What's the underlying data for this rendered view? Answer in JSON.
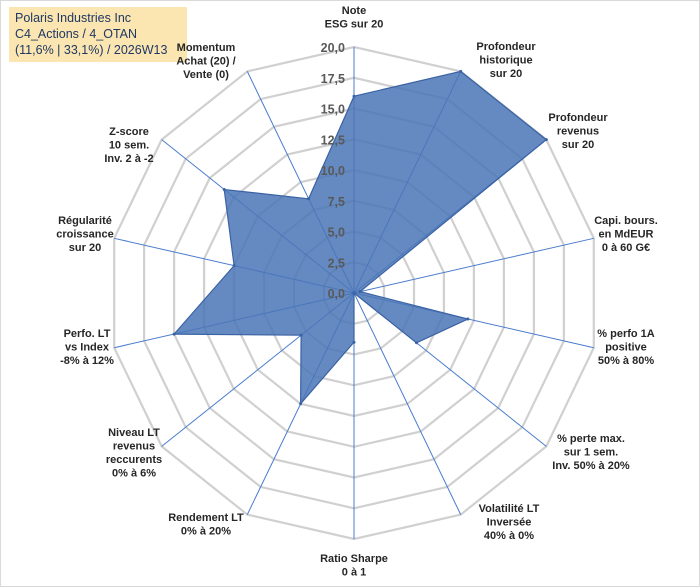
{
  "title": {
    "line1": "Polaris Industries Inc",
    "line2": "C4_Actions / 4_OTAN",
    "line3": "(11,6% | 33,1%) / 2026W13"
  },
  "chart_data": {
    "type": "radar",
    "title": "Polaris Industries Inc",
    "subtitle": "C4_Actions / 4_OTAN (11,6% | 33,1%) / 2026W13",
    "range": [
      0,
      20
    ],
    "ticks": [
      "0,0",
      "2,5",
      "5,0",
      "7,5",
      "10,0",
      "12,5",
      "15,0",
      "17,5",
      "20,0"
    ],
    "tick_values": [
      0,
      2.5,
      5,
      7.5,
      10,
      12.5,
      15,
      17.5,
      20
    ],
    "categories": [
      [
        "Note",
        "ESG sur 20"
      ],
      [
        "Profondeur",
        "historique",
        "sur 20"
      ],
      [
        "Profondeur",
        "revenus",
        "sur 20"
      ],
      [
        "Capi. bours.",
        "en MdEUR",
        "0 à 60 G€"
      ],
      [
        "% perfo 1A",
        "positive",
        "50% à 80%"
      ],
      [
        "% perte max.",
        "sur 1 sem.",
        "Inv. 50% à 20%"
      ],
      [
        "Volatilité LT",
        "Inversée",
        "40% à 0%"
      ],
      [
        "Ratio Sharpe",
        "0 à 1"
      ],
      [
        "Rendement LT",
        "0% à 20%"
      ],
      [
        "Niveau LT",
        "revenus",
        "reccurents",
        "0% à 6%"
      ],
      [
        "Perfo. LT",
        "vs Index",
        "-8% à 12%"
      ],
      [
        "Régularité",
        "croissance",
        "sur 20"
      ],
      [
        "Z-score",
        "10 sem.",
        "Inv. 2 à -2"
      ],
      [
        "Momentum",
        "Achat (20) /",
        "Vente (0)"
      ]
    ],
    "series": [
      {
        "name": "Polaris Industries Inc",
        "values": [
          16,
          20,
          20,
          0.5,
          9.5,
          6.5,
          0,
          4,
          10,
          5.5,
          15,
          10,
          13.5,
          8.5
        ]
      }
    ]
  }
}
